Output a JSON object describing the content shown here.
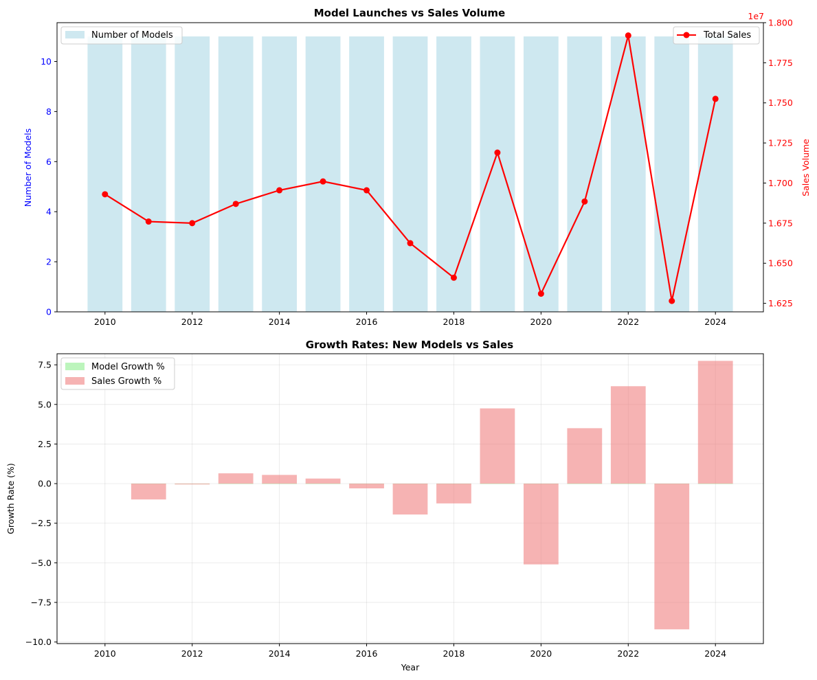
{
  "chart_data": [
    {
      "type": "bar+line",
      "title": "Model Launches vs Sales Volume",
      "xlabel": "",
      "ylabel_left": "Number of Models",
      "ylabel_right": "Sales Volume",
      "right_axis_offset_label": "1e7",
      "x": [
        2010,
        2011,
        2012,
        2013,
        2014,
        2015,
        2016,
        2017,
        2018,
        2019,
        2020,
        2021,
        2022,
        2023,
        2024
      ],
      "xticks": [
        "2010",
        "2012",
        "2014",
        "2016",
        "2018",
        "2020",
        "2022",
        "2024"
      ],
      "xlim": [
        2008.9,
        2025.1
      ],
      "ylim_left": [
        0,
        11.55
      ],
      "yticks_left": [
        "0",
        "2",
        "4",
        "6",
        "8",
        "10"
      ],
      "ylim_right": [
        1.6197,
        1.8
      ],
      "yticks_right": [
        "1.625",
        "1.650",
        "1.675",
        "1.700",
        "1.725",
        "1.750",
        "1.775",
        "1.800"
      ],
      "series": [
        {
          "name": "Number of Models",
          "kind": "bar",
          "axis": "left",
          "color": "#add8e6",
          "values": [
            11,
            11,
            11,
            11,
            11,
            11,
            11,
            11,
            11,
            11,
            11,
            11,
            11,
            11,
            11
          ]
        },
        {
          "name": "Total Sales",
          "kind": "line",
          "axis": "right",
          "color": "#ff0000",
          "values": [
            1.693,
            1.676,
            1.675,
            1.687,
            1.6955,
            1.701,
            1.6955,
            1.6625,
            1.641,
            1.719,
            1.631,
            1.6885,
            1.792,
            1.6265,
            1.7525
          ]
        }
      ],
      "legend_left": "upper-left",
      "legend_right": "upper-right",
      "grid": false
    },
    {
      "type": "bar",
      "title": "Growth Rates: New Models vs Sales",
      "xlabel": "Year",
      "ylabel": "Growth Rate (%)",
      "x": [
        2010,
        2011,
        2012,
        2013,
        2014,
        2015,
        2016,
        2017,
        2018,
        2019,
        2020,
        2021,
        2022,
        2023,
        2024
      ],
      "xticks": [
        "2010",
        "2012",
        "2014",
        "2016",
        "2018",
        "2020",
        "2022",
        "2024"
      ],
      "xlim": [
        2008.9,
        2025.1
      ],
      "ylim": [
        -10.1,
        8.2
      ],
      "yticks": [
        "−10.0",
        "−7.5",
        "−5.0",
        "−2.5",
        "0.0",
        "2.5",
        "5.0",
        "7.5"
      ],
      "series": [
        {
          "name": "Model Growth %",
          "color": "#90ee90",
          "values": [
            null,
            0,
            0,
            0,
            0,
            0,
            0,
            0,
            0,
            0,
            0,
            0,
            0,
            0,
            0
          ]
        },
        {
          "name": "Sales Growth %",
          "color": "#f08080",
          "values": [
            null,
            -1.0,
            -0.05,
            0.65,
            0.55,
            0.32,
            -0.3,
            -1.95,
            -1.25,
            4.75,
            -5.1,
            3.5,
            6.15,
            -9.2,
            7.75
          ]
        }
      ],
      "legend": "upper-left",
      "grid": true
    }
  ]
}
